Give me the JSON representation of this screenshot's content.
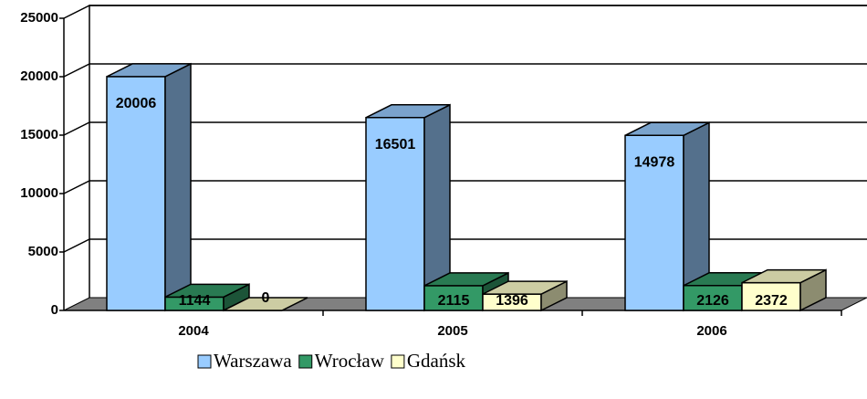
{
  "chart_data": {
    "type": "bar3d",
    "categories": [
      "2004",
      "2005",
      "2006"
    ],
    "series": [
      {
        "name": "Warszawa",
        "color": "#99ccff",
        "values": [
          20006,
          16501,
          14978
        ]
      },
      {
        "name": "Wrocław",
        "color": "#339966",
        "values": [
          1144,
          2115,
          2126
        ]
      },
      {
        "name": "Gdańsk",
        "color": "#ffffcc",
        "values": [
          0,
          1396,
          2372
        ]
      }
    ],
    "ylim": [
      0,
      25000
    ],
    "yticks": [
      0,
      5000,
      10000,
      15000,
      20000,
      25000
    ],
    "grid": true,
    "legend": "bottom"
  }
}
